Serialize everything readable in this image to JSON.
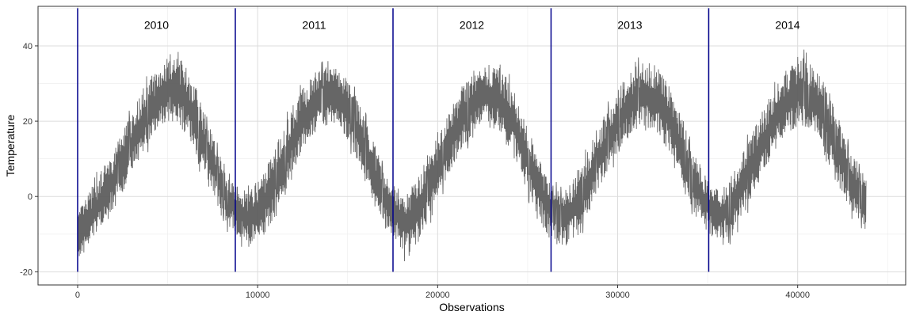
{
  "chart_data": {
    "type": "line",
    "title": "",
    "xlabel": "Observations",
    "ylabel": "Temperature",
    "xlim": [
      -2200,
      46000
    ],
    "ylim": [
      -23.5,
      50.5
    ],
    "x_ticks": [
      0,
      10000,
      20000,
      30000,
      40000
    ],
    "x_tick_labels": [
      "0",
      "10000",
      "20000",
      "30000",
      "40000"
    ],
    "y_ticks": [
      -20,
      0,
      20,
      40
    ],
    "y_tick_labels": [
      "-20",
      "0",
      "20",
      "40"
    ],
    "grid": true,
    "legend": "none",
    "series": [
      {
        "x": [
          0,
          730,
          1460,
          2190,
          2920,
          3650,
          4380,
          5110,
          5840,
          6570,
          7300,
          8030,
          8760,
          9490,
          10220,
          10950,
          11680,
          12410,
          13140,
          13870,
          14600,
          15330,
          16060,
          16790,
          17520,
          18250,
          18980,
          19710,
          20440,
          21170,
          21900,
          22630,
          23360,
          24090,
          24820,
          25550,
          26280,
          27010,
          27740,
          28470,
          29200,
          29930,
          30660,
          31390,
          32120,
          32850,
          33580,
          34310,
          35040,
          35770,
          36500,
          37230,
          37960,
          38690,
          39420,
          40150,
          40880,
          41610,
          42340,
          43070,
          43800
        ],
        "y": [
          -12,
          -6,
          0,
          6,
          13,
          20,
          25,
          29,
          27,
          20,
          11,
          2,
          -3,
          -6,
          -3,
          4,
          12,
          19,
          25,
          27,
          26,
          20,
          11,
          2,
          -4,
          -7,
          -3,
          4,
          12,
          19,
          24,
          27,
          26,
          21,
          12,
          3,
          -4,
          -6,
          -2,
          5,
          12,
          19,
          24,
          27,
          26,
          21,
          12,
          3,
          -3,
          -5,
          -1,
          6,
          13,
          20,
          25,
          28,
          26,
          20,
          11,
          3,
          -2
        ],
        "min": [
          -18,
          -12,
          -7,
          -2,
          5,
          12,
          17,
          20,
          18,
          11,
          2,
          -6,
          -10,
          -14,
          -12,
          -5,
          4,
          11,
          16,
          19,
          18,
          11,
          2,
          -6,
          -11,
          -16,
          -12,
          -5,
          4,
          11,
          16,
          19,
          17,
          12,
          3,
          -5,
          -12,
          -14,
          -11,
          -4,
          4,
          11,
          16,
          19,
          17,
          12,
          3,
          -5,
          -10,
          -12,
          -10,
          -3,
          5,
          12,
          17,
          19,
          18,
          11,
          2,
          -5,
          -9
        ],
        "max": [
          -4,
          2,
          8,
          14,
          22,
          29,
          34,
          38,
          36,
          29,
          19,
          9,
          4,
          1,
          6,
          13,
          21,
          28,
          33,
          35,
          34,
          28,
          20,
          10,
          3,
          1,
          6,
          13,
          21,
          28,
          33,
          36,
          35,
          30,
          21,
          11,
          3,
          1,
          7,
          14,
          21,
          28,
          33,
          36,
          35,
          30,
          21,
          11,
          4,
          2,
          8,
          15,
          22,
          29,
          34,
          38,
          35,
          29,
          20,
          11,
          6
        ],
        "color": "#555555"
      }
    ],
    "annotations": {
      "year_lines": [
        {
          "x": 0,
          "label": "2010"
        },
        {
          "x": 8760,
          "label": "2011"
        },
        {
          "x": 17520,
          "label": "2012"
        },
        {
          "x": 26300,
          "label": "2013"
        },
        {
          "x": 35060,
          "label": "2014"
        }
      ],
      "year_line_top": 50,
      "year_line_bottom": -20,
      "year_label_y": 44.5,
      "year_label_offset": 4380,
      "line_color": "#00008B"
    }
  }
}
